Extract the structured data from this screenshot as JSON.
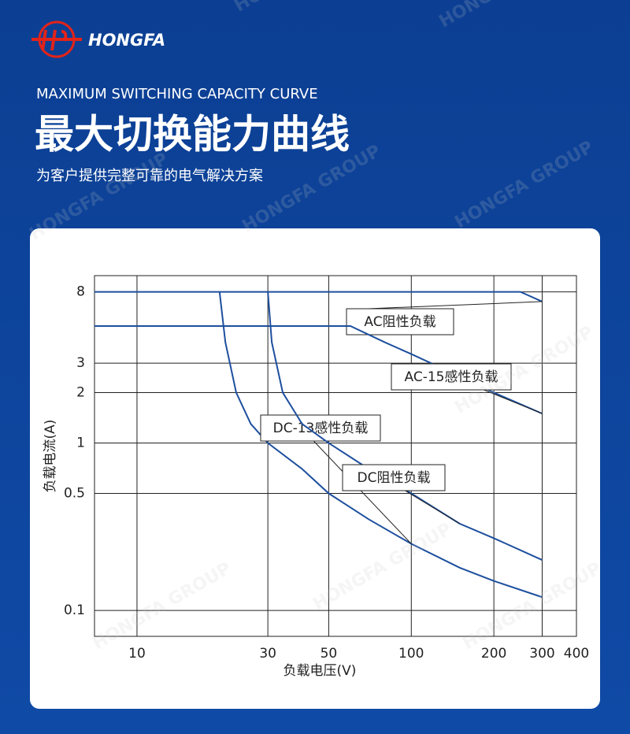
{
  "header": {
    "brand": "HONGFA",
    "subtitle": "MAXIMUM SWITCHING CAPACITY CURVE",
    "title": "最大切换能力曲线",
    "tagline": "为客户提供完整可靠的电气解决方案",
    "watermark": "HONGFA GROUP"
  },
  "chart_data": {
    "type": "line",
    "log_scale": true,
    "grid": true,
    "x_label": "负载电压(V)",
    "y_label": "负载电流(A)",
    "xlim": [
      7,
      400
    ],
    "xticks": [
      10,
      30,
      50,
      100,
      200,
      300,
      400
    ],
    "ylim": [
      0.07,
      10
    ],
    "yticks": [
      8,
      3,
      2,
      1,
      0.5,
      0.1
    ],
    "series": [
      {
        "name": "AC阻性负载",
        "color": "#1d4f9e",
        "x": [
          7,
          250,
          300
        ],
        "values": [
          8,
          8,
          7
        ]
      },
      {
        "name": "AC-15感性负载",
        "color": "#1d4f9e",
        "x": [
          7,
          60,
          80,
          100,
          150,
          200,
          300
        ],
        "values": [
          5,
          5,
          4,
          3.4,
          2.5,
          2,
          1.5
        ]
      },
      {
        "name": "DC-13感性负载",
        "color": "#1d4f9e",
        "x": [
          20,
          21,
          23,
          26,
          30,
          40,
          50,
          70,
          100,
          150,
          200,
          300
        ],
        "values": [
          8,
          4,
          2,
          1.3,
          1,
          0.7,
          0.5,
          0.35,
          0.25,
          0.18,
          0.15,
          0.12
        ]
      },
      {
        "name": "DC阻性负载",
        "color": "#1d4f9e",
        "x": [
          30,
          31,
          34,
          40,
          50,
          70,
          100,
          150,
          200,
          300
        ],
        "values": [
          8,
          4,
          2,
          1.3,
          1,
          0.7,
          0.5,
          0.33,
          0.27,
          0.2
        ]
      }
    ]
  }
}
